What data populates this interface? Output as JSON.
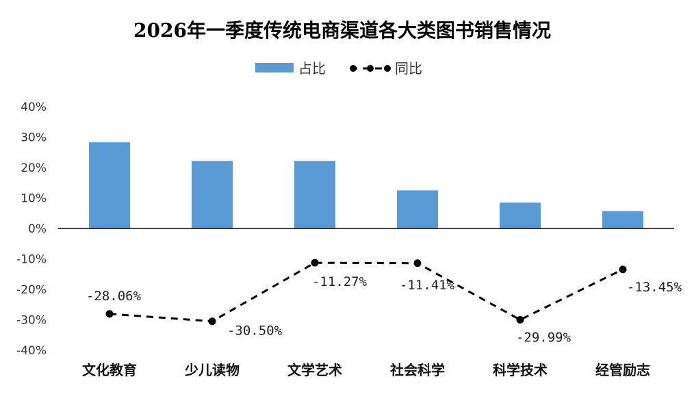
{
  "chart_data": {
    "type": "bar",
    "title": "2026年一季度传统电商渠道各大类图书销售情况",
    "categories": [
      "文化教育",
      "少儿读物",
      "文学艺术",
      "社会科学",
      "科学技术",
      "经管励志"
    ],
    "series": [
      {
        "name": "占比",
        "type": "bar",
        "color": "#5b9bd5",
        "values": [
          28.3,
          22.2,
          22.2,
          12.5,
          8.5,
          5.7
        ]
      },
      {
        "name": "同比",
        "type": "line",
        "style": "dashed",
        "color": "#000000",
        "values": [
          -28.06,
          -30.5,
          -11.27,
          -11.41,
          -29.99,
          -13.45
        ],
        "labels": [
          "-28.06%",
          "-30.50%",
          "-11.27%",
          "-11.41%",
          "-29.99%",
          "-13.45%"
        ]
      }
    ],
    "ylim": [
      -40,
      40
    ],
    "yticks": [
      "40%",
      "30%",
      "20%",
      "10%",
      "0%",
      "-10%",
      "-20%",
      "-30%",
      "-40%"
    ],
    "ytick_values": [
      40,
      30,
      20,
      10,
      0,
      -10,
      -20,
      -30,
      -40
    ],
    "legend": "top-center",
    "grid": false
  }
}
